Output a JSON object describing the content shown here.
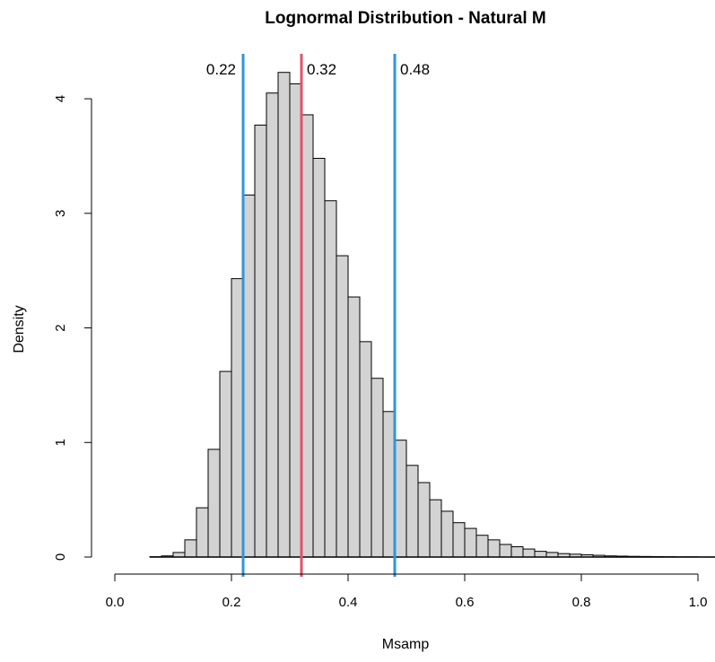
{
  "chart_data": {
    "type": "histogram",
    "title": "Lognormal Distribution - Natural M",
    "xlabel": "Msamp",
    "ylabel": "Density",
    "xlim": [
      0.0,
      1.0
    ],
    "ylim": [
      0,
      4.4
    ],
    "x_ticks": [
      "0.0",
      "0.2",
      "0.4",
      "0.6",
      "0.8",
      "1.0"
    ],
    "y_ticks": [
      "0",
      "1",
      "2",
      "3",
      "4"
    ],
    "bin_width": 0.02,
    "bin_starts": [
      0.06,
      0.08,
      0.1,
      0.12,
      0.14,
      0.16,
      0.18,
      0.2,
      0.22,
      0.24,
      0.26,
      0.28,
      0.3,
      0.32,
      0.34,
      0.36,
      0.38,
      0.4,
      0.42,
      0.44,
      0.46,
      0.48,
      0.5,
      0.52,
      0.54,
      0.56,
      0.58,
      0.6,
      0.62,
      0.64,
      0.66,
      0.68,
      0.7,
      0.72,
      0.74,
      0.76,
      0.78,
      0.8,
      0.82,
      0.84,
      0.86,
      0.88,
      0.9,
      0.92,
      0.94,
      0.96,
      0.98,
      1.0,
      1.02
    ],
    "densities": [
      0.003,
      0.01,
      0.04,
      0.15,
      0.43,
      0.94,
      1.62,
      2.43,
      3.16,
      3.77,
      4.05,
      4.23,
      4.13,
      3.86,
      3.48,
      3.11,
      2.63,
      2.27,
      1.88,
      1.56,
      1.27,
      1.02,
      0.8,
      0.65,
      0.5,
      0.4,
      0.3,
      0.25,
      0.19,
      0.15,
      0.11,
      0.09,
      0.07,
      0.05,
      0.04,
      0.03,
      0.025,
      0.02,
      0.015,
      0.01,
      0.008,
      0.006,
      0.005,
      0.004,
      0.003,
      0.002,
      0.002,
      0.001,
      0.001
    ],
    "reference_lines": [
      {
        "x": 0.22,
        "label": "0.22",
        "color": "#2f96d8",
        "label_side": "left"
      },
      {
        "x": 0.32,
        "label": "0.32",
        "color": "#df536b",
        "label_side": "right"
      },
      {
        "x": 0.48,
        "label": "0.48",
        "color": "#2f96d8",
        "label_side": "right"
      }
    ],
    "bar_fill": "#d3d3d3",
    "bar_stroke": "#000000",
    "grid": false,
    "legend": "none"
  }
}
